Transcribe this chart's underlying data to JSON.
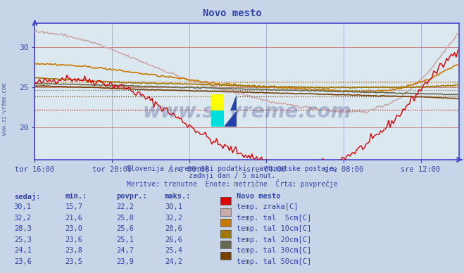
{
  "title": "Novo mesto",
  "background_color": "#c8d4e8",
  "plot_bg_color": "#dce8f0",
  "x_labels": [
    "tor 16:00",
    "tor 20:00",
    "sre 00:00",
    "sre 04:00",
    "sre 08:00",
    "sre 12:00"
  ],
  "x_ticks_pos": [
    0,
    48,
    96,
    144,
    192,
    240
  ],
  "total_points": 265,
  "ylim": [
    16,
    33
  ],
  "yticks": [
    20,
    25,
    30
  ],
  "subtitle1": "Slovenija / vremenski podatki - avtomatske postaje.",
  "subtitle2": "zadnji dan / 5 minut.",
  "subtitle3": "Meritve: trenutne  Enote: metrične  Črta: povprečje",
  "watermark": "www.si-vreme.com",
  "legend_title": "Novo mesto",
  "legend_items": [
    {
      "label": "temp. zraka[C]",
      "color": "#dd0000"
    },
    {
      "label": "temp. tal  5cm[C]",
      "color": "#c8a8a8"
    },
    {
      "label": "temp. tal 10cm[C]",
      "color": "#c87800"
    },
    {
      "label": "temp. tal 20cm[C]",
      "color": "#a07800"
    },
    {
      "label": "temp. tal 30cm[C]",
      "color": "#686850"
    },
    {
      "label": "temp. tal 50cm[C]",
      "color": "#784000"
    }
  ],
  "table_headers": [
    "sedaj:",
    "min.:",
    "povpr.:",
    "maks.:"
  ],
  "table_data": [
    [
      "30,1",
      "15,7",
      "22,2",
      "30,1"
    ],
    [
      "32,2",
      "21,6",
      "25,8",
      "32,2"
    ],
    [
      "28,3",
      "23,0",
      "25,6",
      "28,6"
    ],
    [
      "25,3",
      "23,6",
      "25,1",
      "26,6"
    ],
    [
      "24,1",
      "23,8",
      "24,7",
      "25,4"
    ],
    [
      "23,6",
      "23,5",
      "23,9",
      "24,2"
    ]
  ],
  "axis_color": "#4444cc",
  "grid_color_h": "#cc8888",
  "grid_color_v": "#9999cc",
  "text_color": "#3344aa",
  "avg_values": [
    22.2,
    25.8,
    25.6,
    25.1,
    24.7,
    23.9
  ]
}
